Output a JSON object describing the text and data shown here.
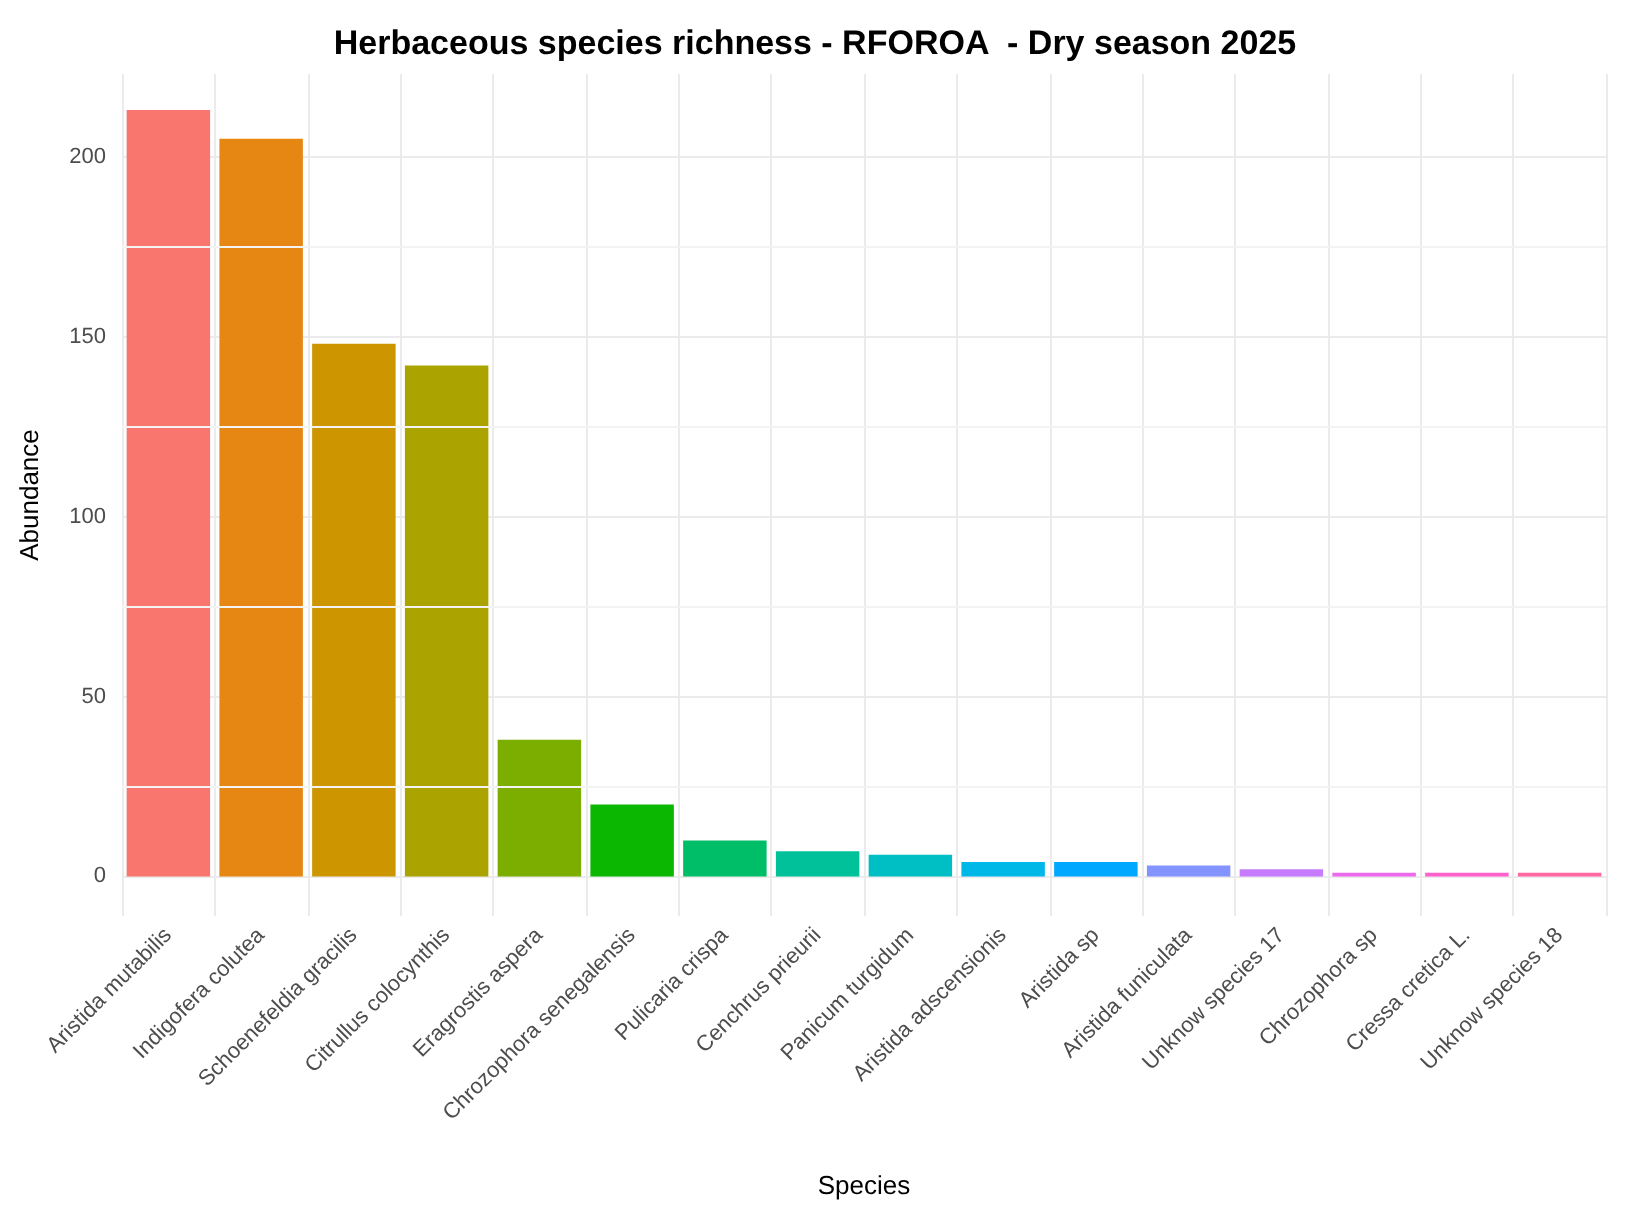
{
  "chart_data": {
    "type": "bar",
    "title": "Herbaceous species richness - RFOROA  - Dry season 2025",
    "xlabel": "Species",
    "ylabel": "Abundance",
    "categories": [
      "Aristida mutabilis",
      "Indigofera colutea",
      "Schoenefeldia gracilis",
      "Citrullus colocynthis",
      "Eragrostis aspera",
      "Chrozophora senegalensis",
      "Pulicaria crispa",
      "Cenchrus prieurii",
      "Panicum turgidum",
      "Aristida adscensionis",
      "Aristida sp",
      "Aristida funiculata",
      "Unknow species 17",
      "Chrozophora sp",
      "Cressa cretica L.",
      "Unknow species 18"
    ],
    "values": [
      213,
      205,
      148,
      142,
      38,
      20,
      10,
      7,
      6,
      4,
      4,
      3,
      2,
      1,
      1,
      1
    ],
    "colors": [
      "#f8766d",
      "#e68613",
      "#cd9600",
      "#aba300",
      "#7cae00",
      "#0cb702",
      "#00be67",
      "#00c19a",
      "#00bfc4",
      "#00b8e7",
      "#00a9ff",
      "#8494ff",
      "#c77cff",
      "#ed68ed",
      "#ff61cc",
      "#ff68a1"
    ],
    "ylim": [
      -11,
      223
    ],
    "yticks": [
      0,
      50,
      100,
      150,
      200
    ],
    "grid": true
  }
}
